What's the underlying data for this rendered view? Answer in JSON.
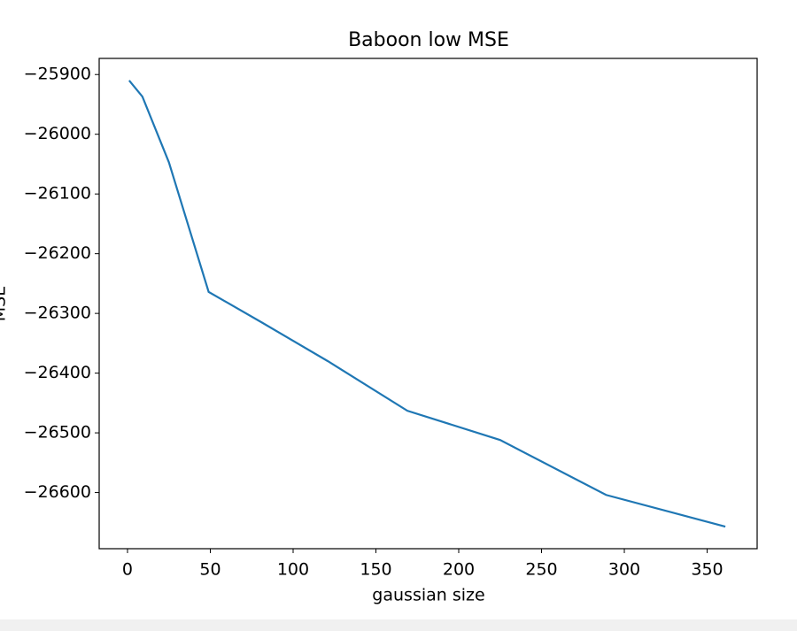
{
  "chart_data": {
    "type": "line",
    "title": "Baboon low MSE",
    "xlabel": "gaussian size",
    "ylabel": "MSE",
    "x": [
      1,
      9,
      25,
      49,
      81,
      121,
      169,
      225,
      289,
      361
    ],
    "series": [
      {
        "color": "#1f77b4",
        "values": [
          -25910,
          -25937,
          -26047,
          -26264,
          -26315,
          -26380,
          -26463,
          -26512,
          -26604,
          -26657
        ]
      }
    ],
    "xlim": [
      -17.1,
      380.2
    ],
    "ylim": [
      -26694,
      -25873
    ],
    "xticks": [
      0,
      50,
      100,
      150,
      200,
      250,
      300,
      350
    ],
    "yticks": [
      {
        "value": -26600,
        "label": "−26600"
      },
      {
        "value": -26500,
        "label": "−26500"
      },
      {
        "value": -26400,
        "label": "−26400"
      },
      {
        "value": -26300,
        "label": "−26300"
      },
      {
        "value": -26200,
        "label": "−26200"
      },
      {
        "value": -26100,
        "label": "−26100"
      },
      {
        "value": -26000,
        "label": "−26000"
      },
      {
        "value": -25900,
        "label": "−25900"
      }
    ],
    "grid": false
  }
}
